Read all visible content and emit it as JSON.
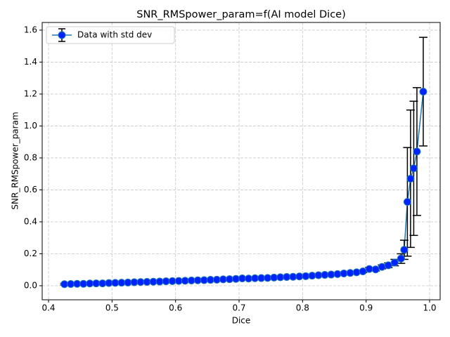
{
  "chart_data": {
    "type": "errorbar",
    "title": "SNR_RMSpower_param=f(AI model Dice)",
    "xlabel": "Dice",
    "ylabel": "SNR_RMSpower_param",
    "x": [
      0.425,
      0.435,
      0.445,
      0.455,
      0.465,
      0.475,
      0.485,
      0.495,
      0.505,
      0.515,
      0.525,
      0.535,
      0.545,
      0.555,
      0.565,
      0.575,
      0.585,
      0.595,
      0.605,
      0.615,
      0.625,
      0.635,
      0.645,
      0.655,
      0.665,
      0.675,
      0.685,
      0.695,
      0.705,
      0.715,
      0.725,
      0.735,
      0.745,
      0.755,
      0.765,
      0.775,
      0.785,
      0.795,
      0.805,
      0.815,
      0.825,
      0.835,
      0.845,
      0.855,
      0.865,
      0.875,
      0.885,
      0.895,
      0.905,
      0.915,
      0.925,
      0.935,
      0.945,
      0.955,
      0.96,
      0.965,
      0.97,
      0.975,
      0.98,
      0.99
    ],
    "series": [
      {
        "name": "Data with std dev",
        "color": "#1f77b4",
        "marker_color": "#0022ff",
        "error_color": "#000000",
        "values": [
          0.01,
          0.011,
          0.012,
          0.012,
          0.014,
          0.015,
          0.015,
          0.017,
          0.018,
          0.019,
          0.02,
          0.022,
          0.023,
          0.024,
          0.025,
          0.026,
          0.028,
          0.029,
          0.03,
          0.031,
          0.033,
          0.034,
          0.035,
          0.037,
          0.038,
          0.04,
          0.041,
          0.043,
          0.046,
          0.045,
          0.047,
          0.048,
          0.049,
          0.051,
          0.053,
          0.055,
          0.056,
          0.058,
          0.06,
          0.063,
          0.066,
          0.068,
          0.07,
          0.073,
          0.077,
          0.08,
          0.084,
          0.09,
          0.105,
          0.102,
          0.118,
          0.128,
          0.145,
          0.17,
          0.225,
          0.525,
          0.67,
          0.735,
          0.84,
          1.215
        ],
        "errors": [
          0.005,
          0.005,
          0.005,
          0.005,
          0.005,
          0.005,
          0.005,
          0.005,
          0.005,
          0.005,
          0.005,
          0.005,
          0.005,
          0.005,
          0.005,
          0.005,
          0.005,
          0.005,
          0.005,
          0.005,
          0.005,
          0.005,
          0.005,
          0.005,
          0.005,
          0.005,
          0.005,
          0.005,
          0.005,
          0.005,
          0.005,
          0.005,
          0.005,
          0.005,
          0.005,
          0.005,
          0.005,
          0.005,
          0.006,
          0.006,
          0.006,
          0.006,
          0.006,
          0.006,
          0.007,
          0.007,
          0.008,
          0.008,
          0.01,
          0.01,
          0.012,
          0.015,
          0.02,
          0.03,
          0.06,
          0.34,
          0.43,
          0.42,
          0.4,
          0.34
        ]
      }
    ],
    "xlim": [
      0.39,
      1.0166
    ],
    "ylim": [
      -0.088,
      1.648
    ],
    "xticks": [
      0.4,
      0.5,
      0.6,
      0.7,
      0.8,
      0.9,
      {
        "value": 1.0,
        "label": "1.0"
      }
    ],
    "yticks": [
      {
        "value": 0,
        "label": "0.0"
      },
      0.2,
      0.4,
      0.6,
      0.8,
      {
        "value": 1.0,
        "label": "1.0"
      },
      1.2,
      1.4,
      1.6
    ],
    "grid": true,
    "legend": "upper left"
  }
}
